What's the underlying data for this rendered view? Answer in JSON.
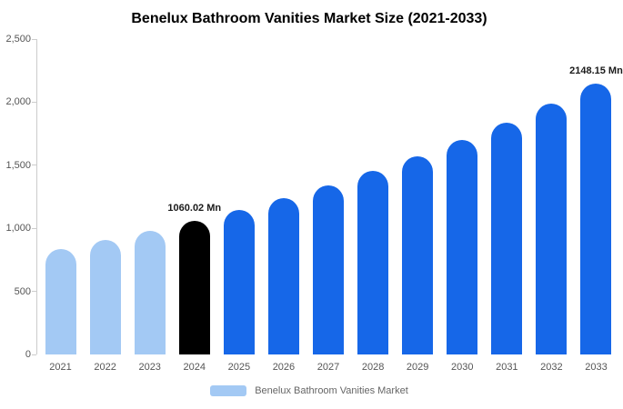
{
  "chart_data": {
    "type": "bar",
    "title": "Benelux Bathroom Vanities Market Size (2021-2033)",
    "categories": [
      "2021",
      "2022",
      "2023",
      "2024",
      "2025",
      "2026",
      "2027",
      "2028",
      "2029",
      "2030",
      "2031",
      "2032",
      "2033"
    ],
    "values": [
      838,
      906,
      980,
      1060.02,
      1147,
      1240,
      1342,
      1452,
      1570,
      1699,
      1837,
      1987,
      2148.15
    ],
    "ylim": [
      0,
      2500
    ],
    "ytick_step": 500,
    "ytick_labels": [
      "0",
      "500",
      "1,000",
      "1,500",
      "2,000",
      "2,500"
    ],
    "annotations": [
      {
        "index": 3,
        "text": "1060.02 Mn"
      },
      {
        "index": 12,
        "text": "2148.15 Mn"
      }
    ],
    "colors": {
      "light": "#A3C9F4",
      "highlight": "#000000",
      "primary": "#1667E8"
    },
    "bar_color_keys": [
      "light",
      "light",
      "light",
      "highlight",
      "primary",
      "primary",
      "primary",
      "primary",
      "primary",
      "primary",
      "primary",
      "primary",
      "primary"
    ],
    "legend": {
      "label": "Benelux Bathroom Vanities Market",
      "swatch_color": "#A3C9F4"
    },
    "grid": "off",
    "legend_position": "bottom-center",
    "xlabel": "",
    "ylabel": ""
  }
}
